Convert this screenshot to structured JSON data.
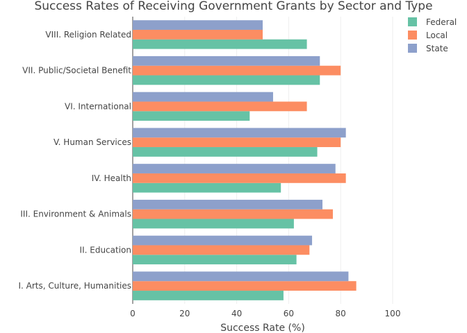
{
  "chart_data": {
    "type": "bar",
    "orientation": "horizontal",
    "title": "Success Rates of Receiving Government Grants by Sector and Type",
    "xlabel": "Success Rate (%)",
    "ylabel": "",
    "xlim": [
      0,
      100
    ],
    "x_ticks": [
      "0",
      "20",
      "40",
      "60",
      "80",
      "100"
    ],
    "grid": true,
    "legend_position": "top-right",
    "categories": [
      "I. Arts, Culture, Humanities",
      "II. Education",
      "III. Environment & Animals",
      "IV. Health",
      "V. Human Services",
      "VI. International",
      "VII. Public/Societal Benefit",
      "VIII. Religion Related"
    ],
    "series": [
      {
        "name": "Federal",
        "color": "#66c2a5",
        "values": [
          58,
          63,
          62,
          57,
          71,
          45,
          72,
          67
        ]
      },
      {
        "name": "Local",
        "color": "#fc8d62",
        "values": [
          86,
          68,
          77,
          82,
          80,
          67,
          80,
          50
        ]
      },
      {
        "name": "State",
        "color": "#8da0cb",
        "values": [
          83,
          69,
          73,
          78,
          82,
          54,
          72,
          50
        ]
      }
    ]
  }
}
